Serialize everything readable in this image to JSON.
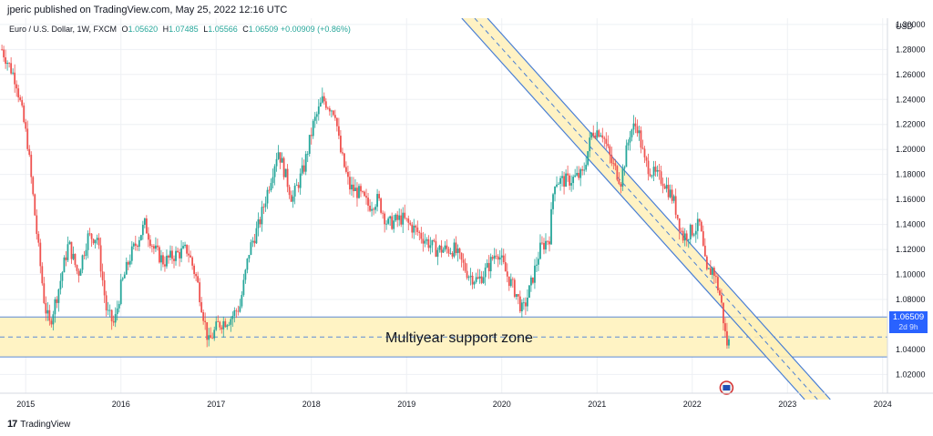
{
  "header": {
    "published": "jperic published on TradingView.com, May 25, 2022 12:16 UTC"
  },
  "legend": {
    "symbol": "Euro / U.S. Dollar, 1W, FXCM",
    "o_key": "O",
    "o_val": "1.05620",
    "h_key": "H",
    "h_val": "1.07485",
    "l_key": "L",
    "l_val": "1.05566",
    "c_key": "C",
    "c_val": "1.06509",
    "change": "+0.00909 (+0.86%)"
  },
  "price_tag": {
    "value": "1.06509",
    "countdown": "2d 9h"
  },
  "footer": {
    "logo": "17",
    "brand": "TradingView"
  },
  "colors": {
    "up": "#26a69a",
    "down": "#ef5350",
    "zone_fill": "#fff3c4",
    "zone_line": "#5b8ad6",
    "channel_fill": "#fff0b8",
    "channel_line": "#4a7fd4"
  },
  "chart_data": {
    "type": "candlestick",
    "title": "",
    "currency": "USD",
    "timeframe": "1W",
    "x_ticks": [
      "2015",
      "2016",
      "2017",
      "2018",
      "2019",
      "2020",
      "2021",
      "2022",
      "2023",
      "2024"
    ],
    "y_ticks": [
      "1.30000",
      "1.28000",
      "1.26000",
      "1.24000",
      "1.22000",
      "1.20000",
      "1.18000",
      "1.16000",
      "1.14000",
      "1.12000",
      "1.10000",
      "1.08000",
      "1.06000",
      "1.04000",
      "1.02000"
    ],
    "ylim": [
      1.005,
      1.305
    ],
    "xlim": [
      2014.73,
      2024.05
    ],
    "price_path": [
      [
        2014.75,
        1.28
      ],
      [
        2014.9,
        1.255
      ],
      [
        2015.02,
        1.205
      ],
      [
        2015.12,
        1.13
      ],
      [
        2015.2,
        1.075
      ],
      [
        2015.25,
        1.06
      ],
      [
        2015.35,
        1.09
      ],
      [
        2015.45,
        1.125
      ],
      [
        2015.55,
        1.1
      ],
      [
        2015.65,
        1.13
      ],
      [
        2015.75,
        1.13
      ],
      [
        2015.85,
        1.07
      ],
      [
        2015.93,
        1.06
      ],
      [
        2016.0,
        1.09
      ],
      [
        2016.1,
        1.115
      ],
      [
        2016.25,
        1.14
      ],
      [
        2016.35,
        1.12
      ],
      [
        2016.45,
        1.11
      ],
      [
        2016.55,
        1.115
      ],
      [
        2016.7,
        1.12
      ],
      [
        2016.8,
        1.095
      ],
      [
        2016.92,
        1.045
      ],
      [
        2017.02,
        1.06
      ],
      [
        2017.15,
        1.065
      ],
      [
        2017.25,
        1.075
      ],
      [
        2017.35,
        1.12
      ],
      [
        2017.45,
        1.14
      ],
      [
        2017.55,
        1.17
      ],
      [
        2017.65,
        1.2
      ],
      [
        2017.8,
        1.16
      ],
      [
        2017.92,
        1.185
      ],
      [
        2018.02,
        1.22
      ],
      [
        2018.12,
        1.24
      ],
      [
        2018.25,
        1.23
      ],
      [
        2018.3,
        1.2
      ],
      [
        2018.4,
        1.17
      ],
      [
        2018.5,
        1.165
      ],
      [
        2018.6,
        1.155
      ],
      [
        2018.7,
        1.16
      ],
      [
        2018.8,
        1.14
      ],
      [
        2018.95,
        1.145
      ],
      [
        2019.1,
        1.135
      ],
      [
        2019.3,
        1.12
      ],
      [
        2019.5,
        1.12
      ],
      [
        2019.65,
        1.1
      ],
      [
        2019.75,
        1.095
      ],
      [
        2019.85,
        1.105
      ],
      [
        2019.95,
        1.12
      ],
      [
        2020.05,
        1.1
      ],
      [
        2020.15,
        1.085
      ],
      [
        2020.22,
        1.07
      ],
      [
        2020.3,
        1.09
      ],
      [
        2020.4,
        1.12
      ],
      [
        2020.5,
        1.13
      ],
      [
        2020.55,
        1.175
      ],
      [
        2020.7,
        1.175
      ],
      [
        2020.85,
        1.18
      ],
      [
        2020.95,
        1.215
      ],
      [
        2021.05,
        1.215
      ],
      [
        2021.15,
        1.19
      ],
      [
        2021.25,
        1.175
      ],
      [
        2021.35,
        1.215
      ],
      [
        2021.42,
        1.22
      ],
      [
        2021.5,
        1.19
      ],
      [
        2021.6,
        1.18
      ],
      [
        2021.7,
        1.175
      ],
      [
        2021.8,
        1.16
      ],
      [
        2021.9,
        1.13
      ],
      [
        2022.0,
        1.135
      ],
      [
        2022.08,
        1.14
      ],
      [
        2022.15,
        1.1
      ],
      [
        2022.22,
        1.105
      ],
      [
        2022.3,
        1.08
      ],
      [
        2022.35,
        1.05
      ],
      [
        2022.38,
        1.04
      ],
      [
        2022.4,
        1.065
      ]
    ],
    "last_close": 1.06509,
    "annotations": [
      {
        "name": "multiyear-support-zone",
        "text": "Multiyear support zone",
        "y_low": 1.034,
        "y_high": 1.066,
        "y_mid": 1.05
      },
      {
        "name": "descending-channel",
        "lower_line": [
          [
            2019.58,
            1.305
          ],
          [
            2023.18,
            1.0
          ]
        ],
        "upper_line": [
          [
            2019.85,
            1.305
          ],
          [
            2023.45,
            1.0
          ]
        ]
      }
    ],
    "grid": true,
    "legend_placement": "top-left"
  }
}
